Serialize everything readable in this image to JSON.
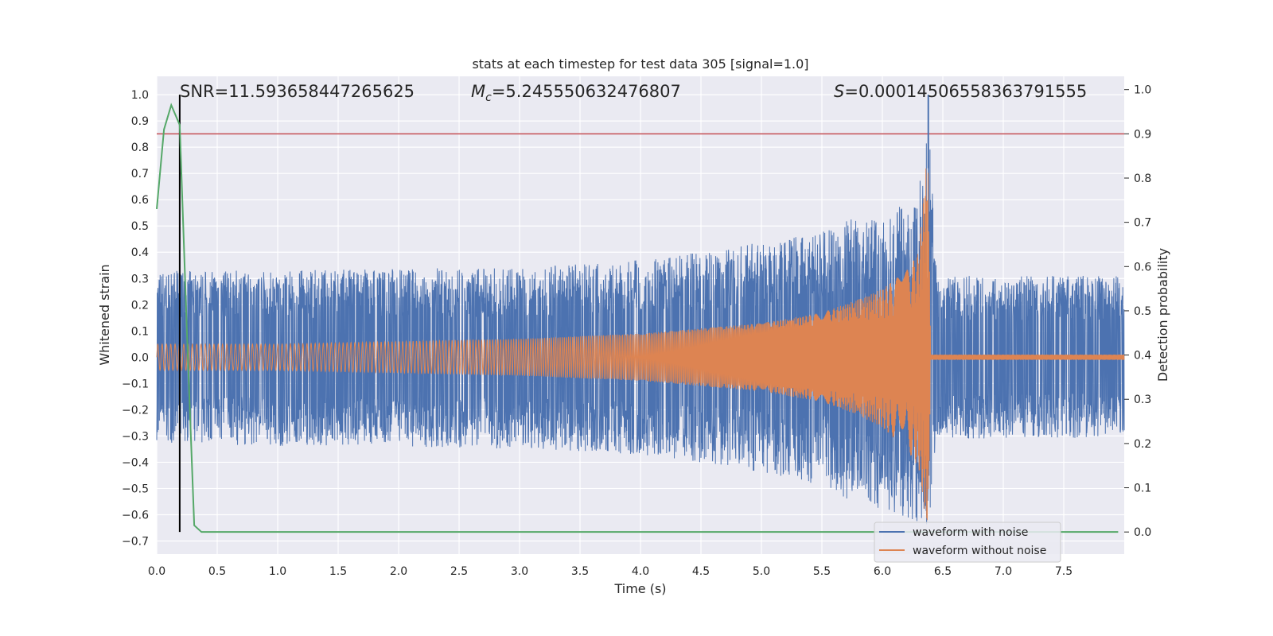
{
  "chart_data": {
    "type": "line",
    "title": "stats at each timestep for test data 305 [signal=1.0]",
    "xlabel": "Time (s)",
    "ylabel": "Whitened strain",
    "ylabel_right": "Detection probability",
    "xlim": [
      0.0,
      8.0
    ],
    "ylim": [
      -0.75,
      1.07
    ],
    "ylim_right": [
      -0.05,
      1.03
    ],
    "x_ticks": [
      "0.0",
      "0.5",
      "1.0",
      "1.5",
      "2.0",
      "2.5",
      "3.0",
      "3.5",
      "4.0",
      "4.5",
      "5.0",
      "5.5",
      "6.0",
      "6.5",
      "7.0",
      "7.5"
    ],
    "y_ticks": [
      "1.0",
      "0.9",
      "0.8",
      "0.7",
      "0.6",
      "0.5",
      "0.4",
      "0.3",
      "0.2",
      "0.1",
      "0.0",
      "−0.1",
      "−0.2",
      "−0.3",
      "−0.4",
      "−0.5",
      "−0.6",
      "−0.7"
    ],
    "y_right_ticks": [
      "1.0",
      "0.9",
      "0.8",
      "0.7",
      "0.6",
      "0.5",
      "0.4",
      "0.3",
      "0.2",
      "0.1",
      "0.0"
    ],
    "grid": true,
    "legend_position": "lower-right",
    "annotations": {
      "snr": "SNR=11.593658447265625",
      "mc": "=5.245550632476807",
      "s": "=0.00014506558363791555"
    },
    "threshold": {
      "value": 0.9,
      "axis": "right",
      "color": "#c44e52"
    },
    "marker_line": {
      "x": 0.19,
      "color": "#000000"
    },
    "peak_line": {
      "x": 6.38,
      "color": "#4c72b0"
    },
    "series": [
      {
        "name": "waveform with noise",
        "color": "#4c72b0",
        "axis": "left",
        "envelope_x": [
          0.0,
          1.0,
          2.0,
          3.0,
          4.0,
          4.5,
          5.0,
          5.5,
          5.8,
          6.0,
          6.2,
          6.3,
          6.38,
          6.45,
          7.0,
          8.0
        ],
        "envelope_upper": [
          0.33,
          0.33,
          0.34,
          0.34,
          0.37,
          0.4,
          0.44,
          0.48,
          0.55,
          0.52,
          0.6,
          0.62,
          1.0,
          0.31,
          0.31,
          0.31
        ],
        "envelope_lower": [
          -0.33,
          -0.34,
          -0.34,
          -0.35,
          -0.37,
          -0.4,
          -0.44,
          -0.49,
          -0.56,
          -0.58,
          -0.62,
          -0.63,
          -0.67,
          -0.31,
          -0.31,
          -0.31
        ]
      },
      {
        "name": "waveform without noise",
        "color": "#dd8452",
        "axis": "left",
        "envelope_x": [
          0.0,
          1.0,
          2.0,
          3.0,
          4.0,
          4.5,
          5.0,
          5.5,
          5.8,
          6.0,
          6.2,
          6.3,
          6.36,
          6.38,
          6.4,
          8.0
        ],
        "envelope_upper": [
          0.05,
          0.05,
          0.06,
          0.07,
          0.09,
          0.11,
          0.13,
          0.17,
          0.22,
          0.26,
          0.33,
          0.4,
          0.72,
          0.7,
          0.01,
          0.01
        ],
        "envelope_lower": [
          -0.05,
          -0.05,
          -0.06,
          -0.07,
          -0.09,
          -0.11,
          -0.13,
          -0.17,
          -0.22,
          -0.27,
          -0.35,
          -0.42,
          -0.62,
          -0.67,
          -0.01,
          -0.01
        ]
      },
      {
        "name": "detection probability",
        "color": "#55a868",
        "axis": "right",
        "x": [
          0.0,
          0.06,
          0.12,
          0.19,
          0.25,
          0.31,
          0.37,
          0.5,
          1.0,
          2.0,
          3.0,
          4.0,
          5.0,
          6.0,
          7.0,
          7.95
        ],
        "y": [
          0.73,
          0.91,
          0.965,
          0.92,
          0.45,
          0.015,
          0.0,
          0.0,
          0.0,
          0.0,
          0.0,
          0.0,
          0.0,
          0.0,
          0.0,
          0.0
        ]
      }
    ]
  }
}
